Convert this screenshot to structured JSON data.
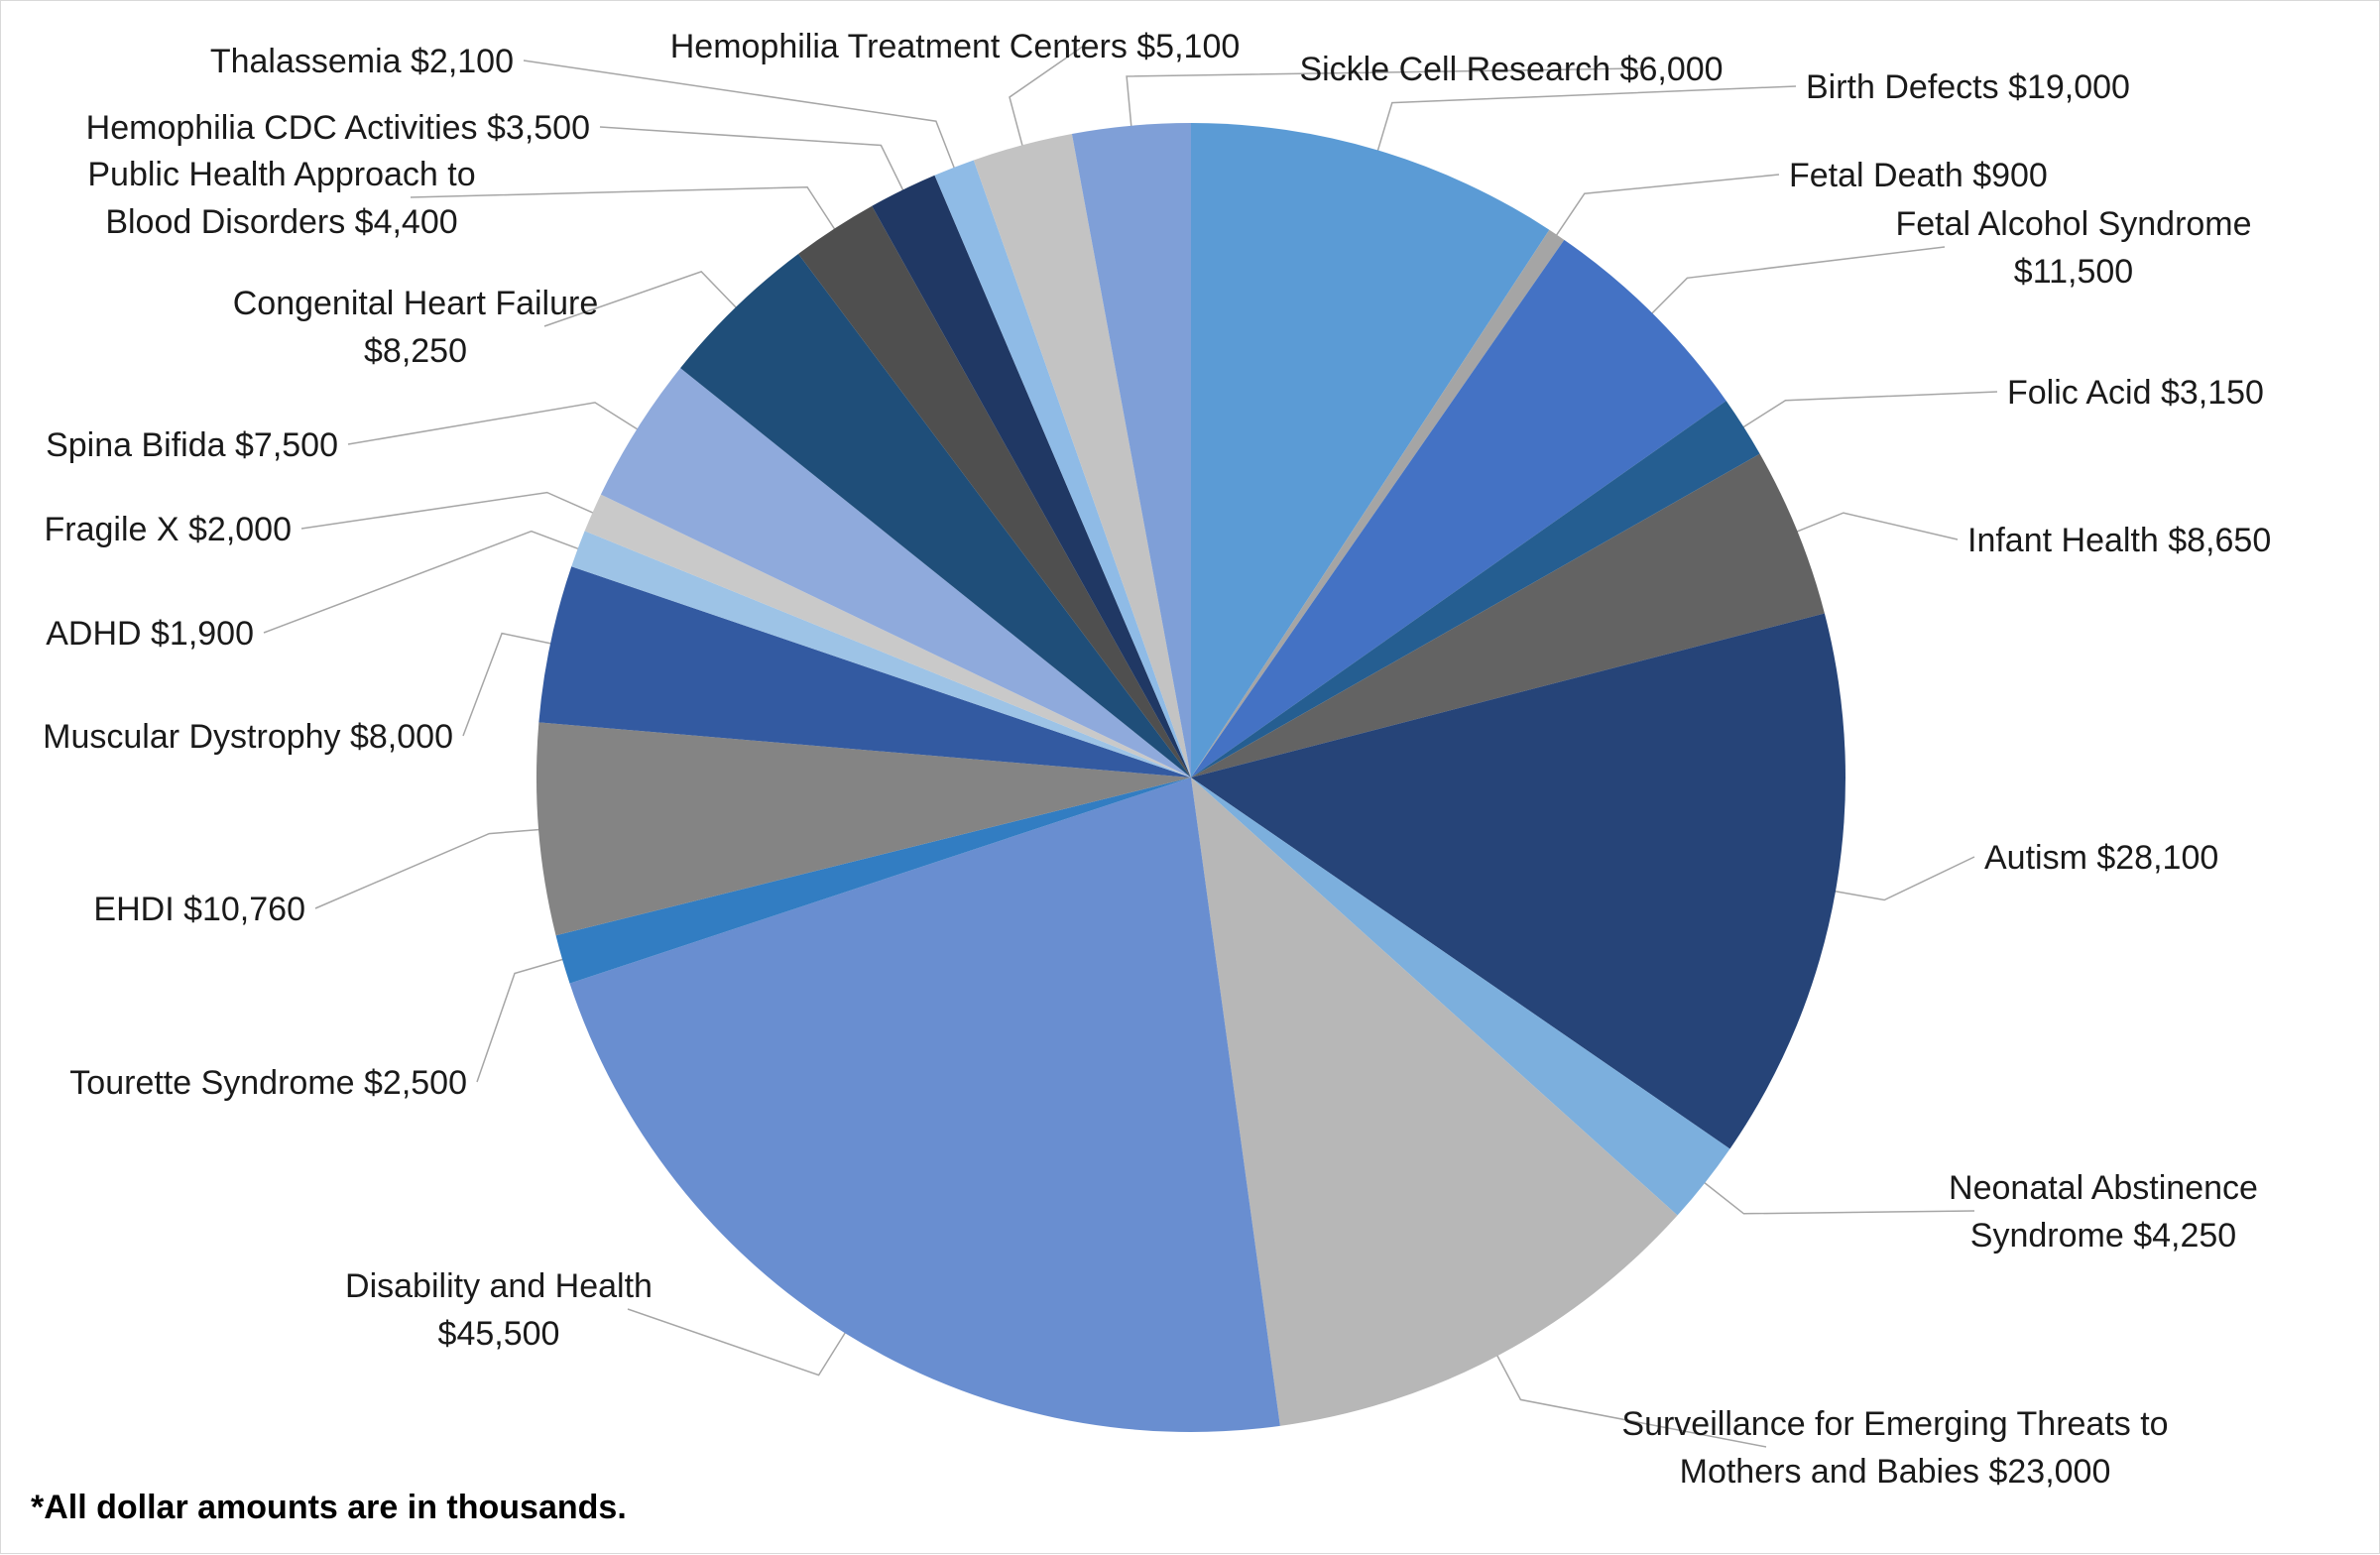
{
  "chart_data": {
    "type": "pie",
    "title": "",
    "unit_note": "*All dollar amounts are in thousands.",
    "slices": [
      {
        "name": "Birth Defects",
        "value": 19000,
        "label_lines": [
          "Birth Defects $19,000"
        ],
        "color": "#5b9bd5"
      },
      {
        "name": "Fetal Death",
        "value": 900,
        "label_lines": [
          "Fetal Death $900"
        ],
        "color": "#a5a5a5"
      },
      {
        "name": "Fetal Alcohol Syndrome",
        "value": 11500,
        "label_lines": [
          "Fetal Alcohol Syndrome",
          "$11,500"
        ],
        "color": "#4472c4"
      },
      {
        "name": "Folic Acid",
        "value": 3150,
        "label_lines": [
          "Folic Acid $3,150"
        ],
        "color": "#255e91"
      },
      {
        "name": "Infant Health",
        "value": 8650,
        "label_lines": [
          "Infant Health $8,650"
        ],
        "color": "#636363"
      },
      {
        "name": "Autism",
        "value": 28100,
        "label_lines": [
          "Autism $28,100"
        ],
        "color": "#264478"
      },
      {
        "name": "Neonatal Abstinence Syndrome",
        "value": 4250,
        "label_lines": [
          "Neonatal Abstinence",
          "Syndrome $4,250"
        ],
        "color": "#7cafdd"
      },
      {
        "name": "Surveillance for Emerging Threats to Mothers and Babies",
        "value": 23000,
        "label_lines": [
          "Surveillance for Emerging Threats to",
          "Mothers and Babies $23,000"
        ],
        "color": "#b7b7b7"
      },
      {
        "name": "Disability and Health",
        "value": 45500,
        "label_lines": [
          "Disability and Health",
          "$45,500"
        ],
        "color": "#698ed0"
      },
      {
        "name": "Tourette Syndrome",
        "value": 2500,
        "label_lines": [
          "Tourette Syndrome $2,500"
        ],
        "color": "#327dc2"
      },
      {
        "name": "EHDI",
        "value": 10760,
        "label_lines": [
          "EHDI $10,760"
        ],
        "color": "#848484"
      },
      {
        "name": "Muscular Dystrophy",
        "value": 8000,
        "label_lines": [
          "Muscular Dystrophy $8,000"
        ],
        "color": "#335aa1"
      },
      {
        "name": "ADHD",
        "value": 1900,
        "label_lines": [
          "ADHD $1,900"
        ],
        "color": "#9dc3e6"
      },
      {
        "name": "Fragile X",
        "value": 2000,
        "label_lines": [
          "Fragile X $2,000"
        ],
        "color": "#c9c9c9"
      },
      {
        "name": "Spina Bifida",
        "value": 7500,
        "label_lines": [
          "Spina Bifida $7,500"
        ],
        "color": "#8faadc"
      },
      {
        "name": "Congenital Heart Failure",
        "value": 8250,
        "label_lines": [
          "Congenital Heart Failure",
          "$8,250"
        ],
        "color": "#1f4e79"
      },
      {
        "name": "Public Health Approach to Blood Disorders",
        "value": 4400,
        "label_lines": [
          "Public Health Approach to",
          "Blood Disorders $4,400"
        ],
        "color": "#4f4f4f"
      },
      {
        "name": "Hemophilia CDC Activities",
        "value": 3500,
        "label_lines": [
          "Hemophilia CDC Activities $3,500"
        ],
        "color": "#203864"
      },
      {
        "name": "Thalassemia",
        "value": 2100,
        "label_lines": [
          "Thalassemia $2,100"
        ],
        "color": "#8fbbe6"
      },
      {
        "name": "Hemophilia Treatment Centers",
        "value": 5100,
        "label_lines": [
          "Hemophilia Treatment Centers $5,100"
        ],
        "color": "#c3c3c3"
      },
      {
        "name": "Sickle Cell Research",
        "value": 6000,
        "label_lines": [
          "Sickle Cell Research $6,000"
        ],
        "color": "#7f9fd7"
      }
    ]
  }
}
